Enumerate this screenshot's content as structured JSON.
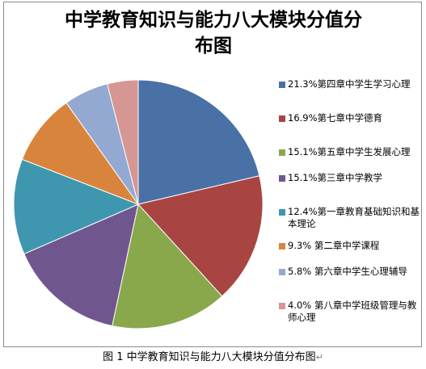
{
  "chart_data": {
    "type": "pie",
    "title_line1": "中学教育知识与能力八大模块分值分",
    "title_line2": "布图",
    "slices": [
      {
        "label": "21.3%第四章中学生学习心理",
        "value": 21.3,
        "color": "#4a71a6"
      },
      {
        "label": "16.9%第七章中学德育",
        "value": 16.9,
        "color": "#a84542"
      },
      {
        "label": "15.1%第五章中学生发展心理",
        "value": 15.1,
        "color": "#88a84b"
      },
      {
        "label": "15.1%第三章中学教学",
        "value": 15.1,
        "color": "#70568f"
      },
      {
        "label": "12.4%第一章教育基础知识和基本理论",
        "value": 12.4,
        "color": "#3f96af"
      },
      {
        "label": "9.3% 第二章中学课程",
        "value": 9.3,
        "color": "#d9843d"
      },
      {
        "label": "5.8% 第六章中学生心理辅导",
        "value": 5.8,
        "color": "#94a9d1"
      },
      {
        "label": "4.0% 第八章中学班级管理与教师心理",
        "value": 4.0,
        "color": "#d69694"
      }
    ],
    "legend_position": "right"
  },
  "caption": {
    "text": "图 1  中学教育知识与能力八大模块分值分布图",
    "mark": "↵"
  }
}
